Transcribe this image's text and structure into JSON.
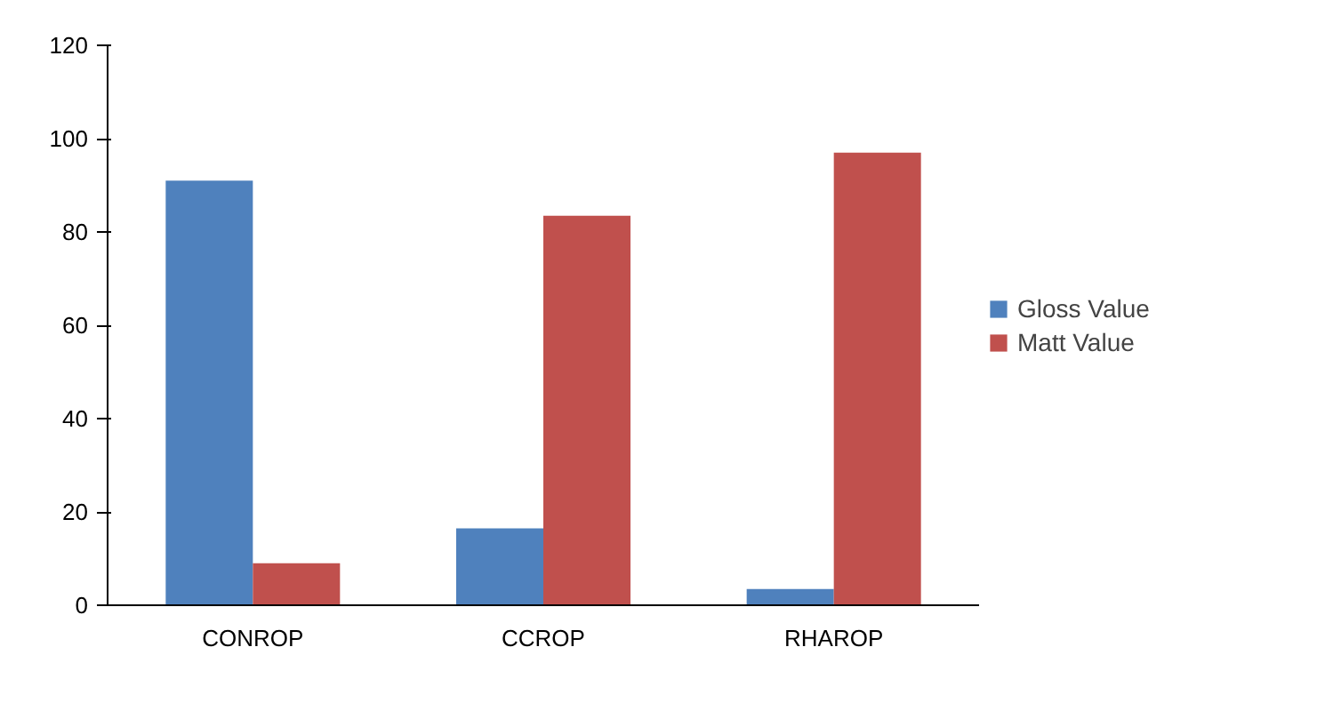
{
  "chart_data": {
    "type": "bar",
    "categories": [
      "CONROP",
      "CCROP",
      "RHAROP"
    ],
    "series": [
      {
        "name": "Gloss Value",
        "color": "#4f81bd",
        "values": [
          91,
          16.5,
          3.5
        ]
      },
      {
        "name": "Matt Value",
        "color": "#c0504d",
        "values": [
          9,
          83.5,
          97
        ]
      }
    ],
    "ylim": [
      0,
      120
    ],
    "yticks": [
      0,
      20,
      40,
      60,
      80,
      100,
      120
    ],
    "grid": false,
    "legend": "right"
  }
}
